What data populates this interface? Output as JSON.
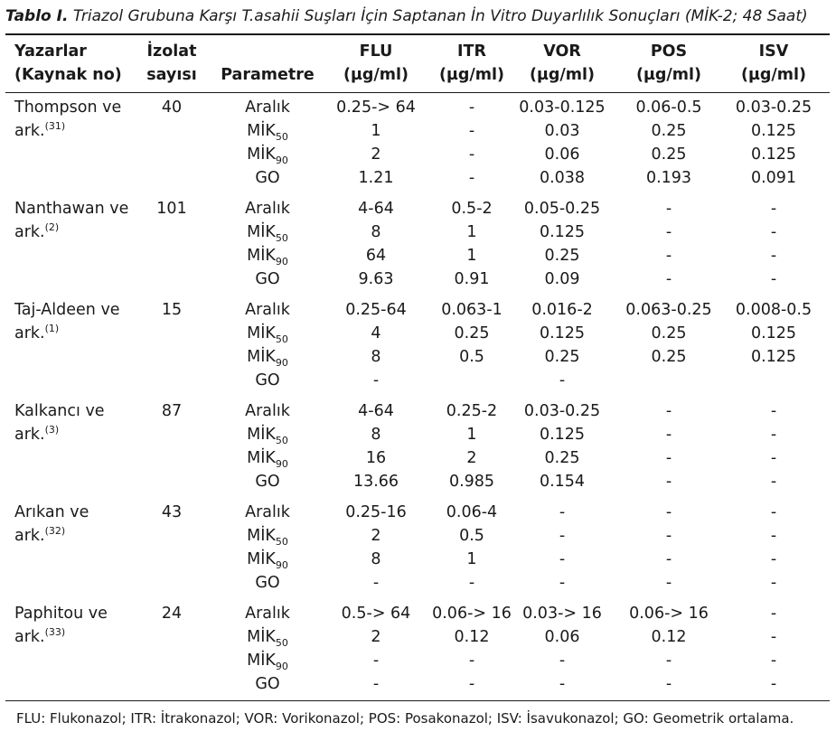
{
  "caption": {
    "label": "Tablo I.",
    "text": "Triazol Grubuna Karşı T.asahii Suşları İçin Saptanan İn Vitro Duyarlılık Sonuçları (MİK-2; 48 Saat)"
  },
  "headers": {
    "authors": [
      "Yazarlar",
      "(Kaynak no)"
    ],
    "isolates": [
      "İzolat",
      "sayısı"
    ],
    "parameter": "Parametre",
    "flu": [
      "FLU",
      "(µg/ml)"
    ],
    "itr": [
      "ITR",
      "(µg/ml)"
    ],
    "vor": [
      "VOR",
      "(µg/ml)"
    ],
    "pos": [
      "POS",
      "(µg/ml)"
    ],
    "isv": [
      "ISV",
      "(µg/ml)"
    ]
  },
  "param_labels": {
    "range": "Aralık",
    "mic_base": "MİK",
    "mic50_sub": "50",
    "mic90_sub": "90",
    "gm": "GO"
  },
  "groups": [
    {
      "author_line1": "Thompson ve",
      "author_line2": "ark.",
      "ref": "(31)",
      "n": "40",
      "flu": [
        "0.25-> 64",
        "1",
        "2",
        "1.21"
      ],
      "itr": [
        "-",
        "-",
        "-",
        "-"
      ],
      "vor": [
        "0.03-0.125",
        "0.03",
        "0.06",
        "0.038"
      ],
      "pos": [
        "0.06-0.5",
        "0.25",
        "0.25",
        "0.193"
      ],
      "isv": [
        "0.03-0.25",
        "0.125",
        "0.125",
        "0.091"
      ]
    },
    {
      "author_line1": "Nanthawan ve",
      "author_line2": "ark.",
      "ref": "(2)",
      "n": "101",
      "flu": [
        "4-64",
        "8",
        "64",
        "9.63"
      ],
      "itr": [
        "0.5-2",
        "1",
        "1",
        "0.91"
      ],
      "vor": [
        "0.05-0.25",
        "0.125",
        "0.25",
        "0.09"
      ],
      "pos": [
        "-",
        "-",
        "-",
        "-"
      ],
      "isv": [
        "-",
        "-",
        "-",
        "-"
      ]
    },
    {
      "author_line1": "Taj-Aldeen ve",
      "author_line2": "ark.",
      "ref": "(1)",
      "n": "15",
      "flu": [
        "0.25-64",
        "4",
        "8",
        "-"
      ],
      "itr": [
        "0.063-1",
        "0.25",
        "0.5",
        ""
      ],
      "vor": [
        "0.016-2",
        "0.125",
        "0.25",
        "-"
      ],
      "pos": [
        "0.063-0.25",
        "0.25",
        "0.25",
        ""
      ],
      "isv": [
        "0.008-0.5",
        "0.125",
        "0.125",
        ""
      ]
    },
    {
      "author_line1": "Kalkancı ve",
      "author_line2": "ark.",
      "ref": "(3)",
      "n": "87",
      "flu": [
        "4-64",
        "8",
        "16",
        "13.66"
      ],
      "itr": [
        "0.25-2",
        "1",
        "2",
        "0.985"
      ],
      "vor": [
        "0.03-0.25",
        "0.125",
        "0.25",
        "0.154"
      ],
      "pos": [
        "-",
        "-",
        "-",
        "-"
      ],
      "isv": [
        "-",
        "-",
        "-",
        "-"
      ]
    },
    {
      "author_line1": "Arıkan ve",
      "author_line2": "ark.",
      "ref": "(32)",
      "n": "43",
      "flu": [
        "0.25-16",
        "2",
        "8",
        "-"
      ],
      "itr": [
        "0.06-4",
        "0.5",
        "1",
        "-"
      ],
      "vor": [
        "-",
        "-",
        "-",
        "-"
      ],
      "pos": [
        "-",
        "-",
        "-",
        "-"
      ],
      "isv": [
        "-",
        "-",
        "-",
        "-"
      ]
    },
    {
      "author_line1": "Paphitou ve",
      "author_line2": "ark.",
      "ref": "(33)",
      "n": "24",
      "flu": [
        "0.5-> 64",
        "2",
        "-",
        "-"
      ],
      "itr": [
        "0.06-> 16",
        "0.12",
        "-",
        "-"
      ],
      "vor": [
        "0.03-> 16",
        "0.06",
        "-",
        "-"
      ],
      "pos": [
        "0.06-> 16",
        "0.12",
        "-",
        "-"
      ],
      "isv": [
        "-",
        "-",
        "-",
        "-"
      ]
    }
  ],
  "footnote": "FLU: Flukonazol; ITR: İtrakonazol; VOR: Vorikonazol; POS: Posakonazol; ISV: İsavukonazol; GO: Geometrik ortalama."
}
